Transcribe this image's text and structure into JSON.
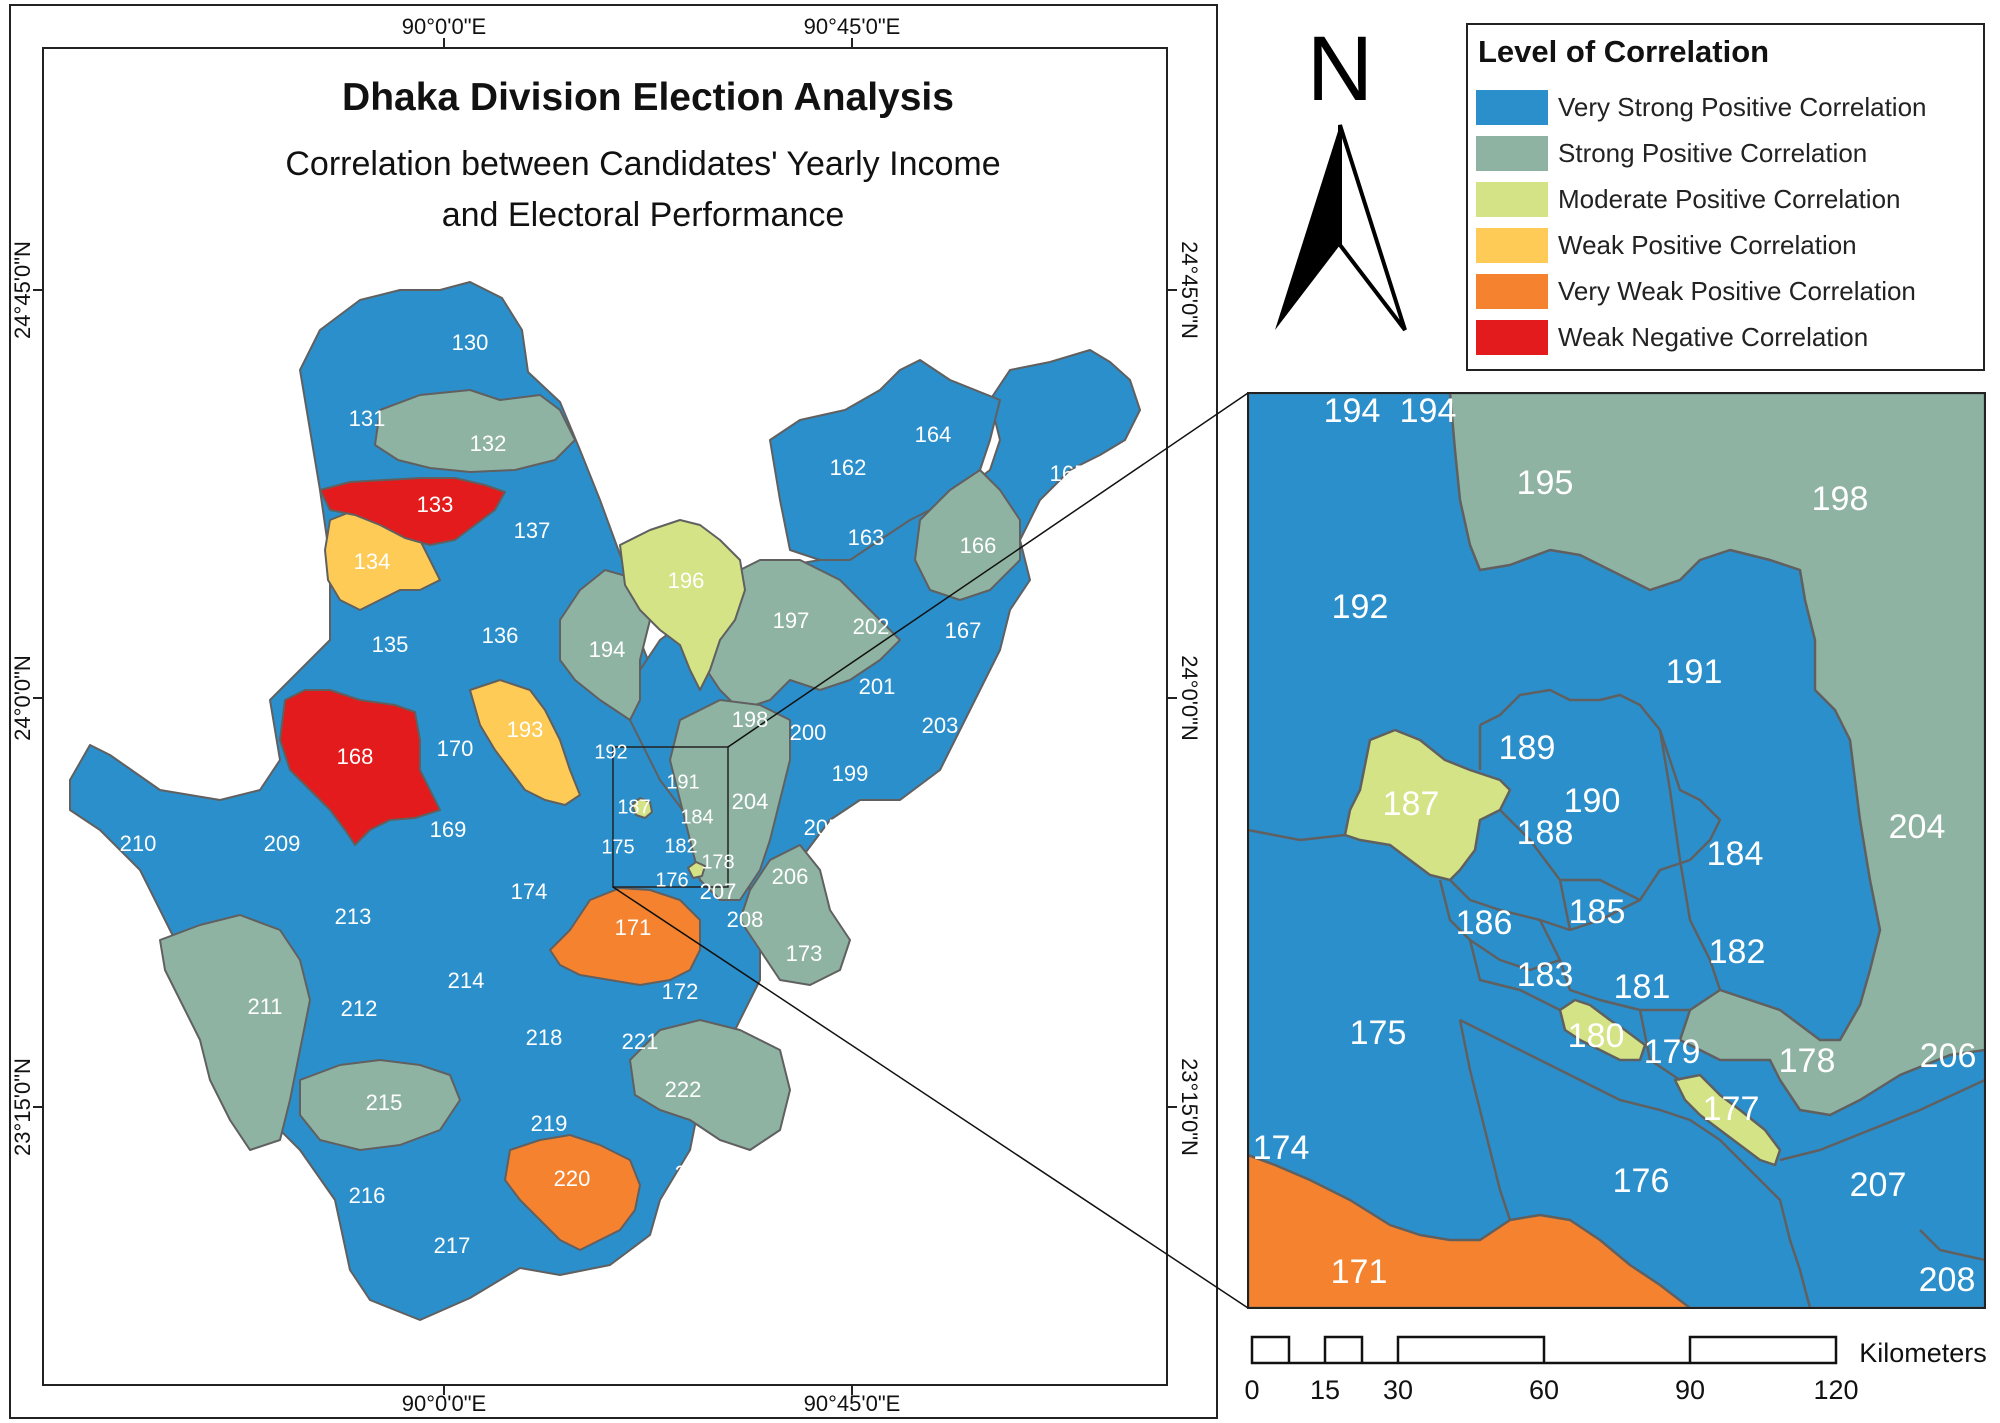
{
  "title": "Dhaka Division Election Analysis",
  "subtitle_line1": "Correlation between Candidates' Yearly Income",
  "subtitle_line2": "and Electoral Performance",
  "coords": {
    "top": [
      "90°0'0\"E",
      "90°45'0\"E"
    ],
    "bottom": [
      "90°0'0\"E",
      "90°45'0\"E"
    ],
    "left": [
      "24°45'0\"N",
      "24°0'0\"N",
      "23°15'0\"N"
    ],
    "right": [
      "24°45'0\"N",
      "24°0'0\"N",
      "23°15'0\"N"
    ]
  },
  "north_arrow": {
    "label": "N",
    "icon": "north-arrow-icon"
  },
  "legend": {
    "title": "Level of Correlation",
    "items": [
      {
        "label": "Very Strong Positive Correlation",
        "color": "#2b8fcb"
      },
      {
        "label": "Strong Positive Correlation",
        "color": "#8fb3a3"
      },
      {
        "label": "Moderate Positive Correlation",
        "color": "#d4e385"
      },
      {
        "label": "Weak Positive Correlation",
        "color": "#fdcb56"
      },
      {
        "label": "Very Weak Positive Correlation",
        "color": "#f5822e"
      },
      {
        "label": "Weak Negative Correlation",
        "color": "#e31b1c"
      }
    ]
  },
  "scale_bar": {
    "unit": "Kilometers",
    "ticks": [
      "0",
      "15",
      "30",
      "60",
      "90",
      "120"
    ]
  },
  "main_map_labels": [
    "130",
    "131",
    "132",
    "133",
    "134",
    "135",
    "136",
    "137",
    "162",
    "163",
    "164",
    "165",
    "166",
    "167",
    "168",
    "169",
    "170",
    "171",
    "172",
    "173",
    "175",
    "176",
    "178",
    "174",
    "182",
    "184",
    "187",
    "191",
    "192",
    "193",
    "194",
    "196",
    "197",
    "198",
    "199",
    "200",
    "201",
    "202",
    "203",
    "204",
    "205",
    "206",
    "207",
    "208",
    "209",
    "210",
    "211",
    "212",
    "213",
    "214",
    "215",
    "216",
    "217",
    "218",
    "219",
    "220",
    "221",
    "222",
    "223"
  ],
  "inset_labels": [
    "194",
    "194",
    "195",
    "198",
    "192",
    "191",
    "189",
    "187",
    "190",
    "188",
    "184",
    "204",
    "186",
    "185",
    "182",
    "183",
    "181",
    "175",
    "180",
    "179",
    "178",
    "206",
    "177",
    "174",
    "176",
    "207",
    "171",
    "208"
  ]
}
